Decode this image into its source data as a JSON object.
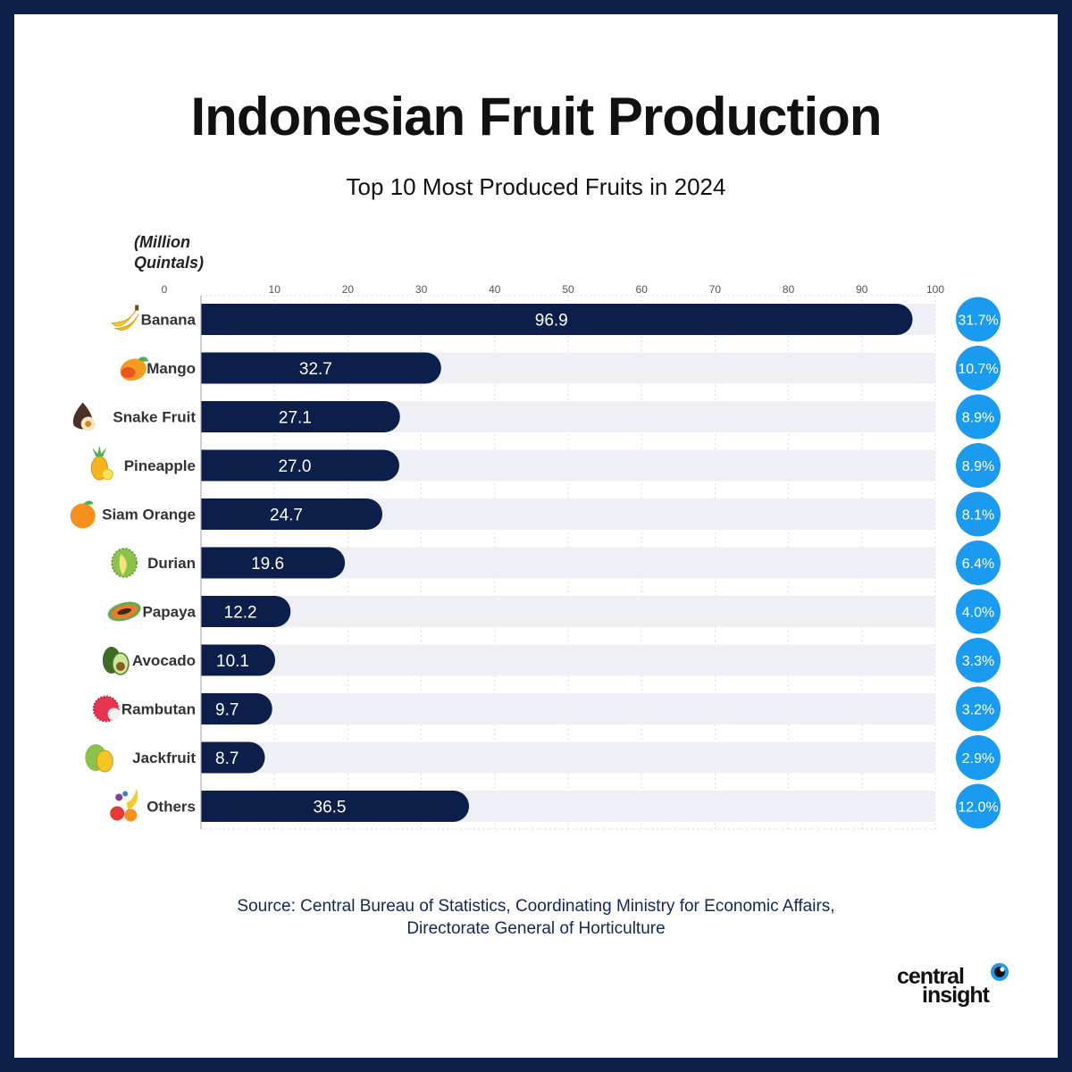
{
  "title": "Indonesian Fruit Production",
  "subtitle": "Top 10 Most Produced Fruits in 2024",
  "unit_label": [
    "(Million",
    "Quintals)"
  ],
  "source": [
    "Source: Central Bureau of Statistics, Coordinating Ministry for Economic Affairs,",
    "Directorate General of Horticulture"
  ],
  "logo": {
    "line1": "central",
    "line2": "insight"
  },
  "colors": {
    "frame": "#0c1f4a",
    "bar": "#0c1f4a",
    "track": "#eef0f6",
    "badge": "#1a9bf0"
  },
  "chart_data": {
    "type": "bar",
    "orientation": "horizontal",
    "title": "Indonesian Fruit Production",
    "subtitle": "Top 10 Most Produced Fruits in 2024",
    "xlim": [
      0,
      100
    ],
    "xticks": [
      0,
      10,
      20,
      30,
      40,
      50,
      60,
      70,
      80,
      90,
      100
    ],
    "grid": true,
    "categories": [
      "Banana",
      "Mango",
      "Snake Fruit",
      "Pineapple",
      "Siam Orange",
      "Durian",
      "Papaya",
      "Avocado",
      "Rambutan",
      "Jackfruit",
      "Others"
    ],
    "icons": [
      "banana-icon",
      "mango-icon",
      "snake-fruit-icon",
      "pineapple-icon",
      "orange-icon",
      "durian-icon",
      "papaya-icon",
      "avocado-icon",
      "rambutan-icon",
      "jackfruit-icon",
      "mixed-fruit-icon"
    ],
    "values": [
      96.9,
      32.7,
      27.1,
      27.0,
      24.7,
      19.6,
      12.2,
      10.1,
      9.7,
      8.7,
      36.5
    ],
    "value_labels": [
      "96.9",
      "32.7",
      "27.1",
      "27.0",
      "24.7",
      "19.6",
      "12.2",
      "10.1",
      "9.7",
      "8.7",
      "36.5"
    ],
    "shares": [
      "31.7%",
      "10.7%",
      "8.9%",
      "8.9%",
      "8.1%",
      "6.4%",
      "4.0%",
      "3.3%",
      "3.2%",
      "2.9%",
      "12.0%"
    ]
  }
}
